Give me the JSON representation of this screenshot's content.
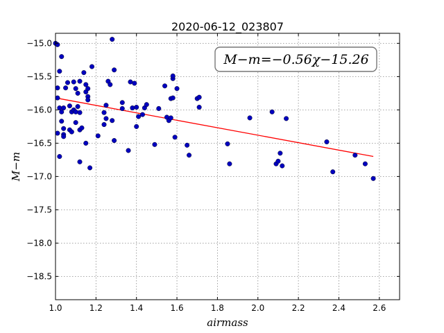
{
  "chart_data": {
    "type": "scatter",
    "title": "2020-06-12_023807",
    "xlabel": "airmass",
    "ylabel": "M−m",
    "xlim": [
      1.0,
      2.7
    ],
    "ylim": [
      -18.85,
      -14.85
    ],
    "y_inverted": true,
    "x_ticks": [
      1.0,
      1.2,
      1.4,
      1.6,
      1.8,
      2.0,
      2.2,
      2.4,
      2.6
    ],
    "x_tick_labels": [
      "1.0",
      "1.2",
      "1.4",
      "1.6",
      "1.8",
      "2.0",
      "2.2",
      "2.4",
      "2.6"
    ],
    "y_ticks": [
      -15.0,
      -15.5,
      -16.0,
      -16.5,
      -17.0,
      -17.5,
      -18.0,
      -18.5
    ],
    "y_tick_labels": [
      "−15.0",
      "−15.5",
      "−16.0",
      "−16.5",
      "−17.0",
      "−17.5",
      "−18.0",
      "−18.5"
    ],
    "grid": true,
    "annotation": "M−m=−0.56χ−15.26",
    "colors": {
      "points": "#0000bf",
      "fit": "#ff0000"
    },
    "fit_line": {
      "slope": -0.56,
      "intercept": -15.26,
      "x_range": [
        1.02,
        2.57
      ]
    },
    "points": [
      [
        1.0,
        -15.0
      ],
      [
        1.01,
        -15.02
      ],
      [
        1.03,
        -15.2
      ],
      [
        1.02,
        -15.42
      ],
      [
        1.01,
        -15.67
      ],
      [
        1.01,
        -15.82
      ],
      [
        1.02,
        -15.97
      ],
      [
        1.02,
        -16.7
      ],
      [
        1.01,
        -16.35
      ],
      [
        1.03,
        -16.03
      ],
      [
        1.04,
        -15.97
      ],
      [
        1.03,
        -16.17
      ],
      [
        1.04,
        -16.28
      ],
      [
        1.04,
        -16.37
      ],
      [
        1.04,
        -16.4
      ],
      [
        1.05,
        -15.67
      ],
      [
        1.06,
        -15.59
      ],
      [
        1.07,
        -15.94
      ],
      [
        1.07,
        -16.3
      ],
      [
        1.08,
        -16.03
      ],
      [
        1.08,
        -16.33
      ],
      [
        1.09,
        -15.58
      ],
      [
        1.09,
        -16.0
      ],
      [
        1.1,
        -15.68
      ],
      [
        1.1,
        -16.03
      ],
      [
        1.1,
        -16.19
      ],
      [
        1.11,
        -15.75
      ],
      [
        1.11,
        -15.95
      ],
      [
        1.12,
        -15.57
      ],
      [
        1.12,
        -16.04
      ],
      [
        1.12,
        -16.3
      ],
      [
        1.13,
        -16.27
      ],
      [
        1.12,
        -16.78
      ],
      [
        1.14,
        -15.44
      ],
      [
        1.15,
        -15.62
      ],
      [
        1.15,
        -15.73
      ],
      [
        1.15,
        -16.5
      ],
      [
        1.16,
        -15.68
      ],
      [
        1.16,
        -15.8
      ],
      [
        1.16,
        -15.85
      ],
      [
        1.17,
        -16.87
      ],
      [
        1.18,
        -15.35
      ],
      [
        1.21,
        -16.39
      ],
      [
        1.24,
        -16.04
      ],
      [
        1.24,
        -16.22
      ],
      [
        1.25,
        -15.93
      ],
      [
        1.25,
        -16.13
      ],
      [
        1.26,
        -15.57
      ],
      [
        1.27,
        -15.62
      ],
      [
        1.28,
        -14.94
      ],
      [
        1.28,
        -16.16
      ],
      [
        1.29,
        -15.4
      ],
      [
        1.29,
        -16.46
      ],
      [
        1.33,
        -15.98
      ],
      [
        1.33,
        -15.89
      ],
      [
        1.36,
        -16.61
      ],
      [
        1.37,
        -15.58
      ],
      [
        1.38,
        -15.97
      ],
      [
        1.39,
        -15.6
      ],
      [
        1.4,
        -15.96
      ],
      [
        1.4,
        -16.25
      ],
      [
        1.41,
        -16.1
      ],
      [
        1.43,
        -16.07
      ],
      [
        1.44,
        -15.97
      ],
      [
        1.45,
        -15.92
      ],
      [
        1.49,
        -16.52
      ],
      [
        1.51,
        -15.98
      ],
      [
        1.54,
        -15.64
      ],
      [
        1.55,
        -16.11
      ],
      [
        1.56,
        -16.16
      ],
      [
        1.57,
        -15.83
      ],
      [
        1.57,
        -16.12
      ],
      [
        1.58,
        -15.82
      ],
      [
        1.58,
        -15.53
      ],
      [
        1.58,
        -15.49
      ],
      [
        1.59,
        -16.41
      ],
      [
        1.6,
        -15.68
      ],
      [
        1.65,
        -16.53
      ],
      [
        1.66,
        -16.68
      ],
      [
        1.7,
        -15.83
      ],
      [
        1.71,
        -15.81
      ],
      [
        1.71,
        -15.96
      ],
      [
        1.85,
        -16.51
      ],
      [
        1.86,
        -16.81
      ],
      [
        1.96,
        -16.12
      ],
      [
        2.07,
        -16.03
      ],
      [
        2.09,
        -16.81
      ],
      [
        2.1,
        -16.77
      ],
      [
        2.11,
        -16.65
      ],
      [
        2.12,
        -16.84
      ],
      [
        2.14,
        -16.13
      ],
      [
        2.34,
        -16.48
      ],
      [
        2.37,
        -16.93
      ],
      [
        2.48,
        -16.68
      ],
      [
        2.53,
        -16.81
      ],
      [
        2.57,
        -17.03
      ]
    ]
  }
}
